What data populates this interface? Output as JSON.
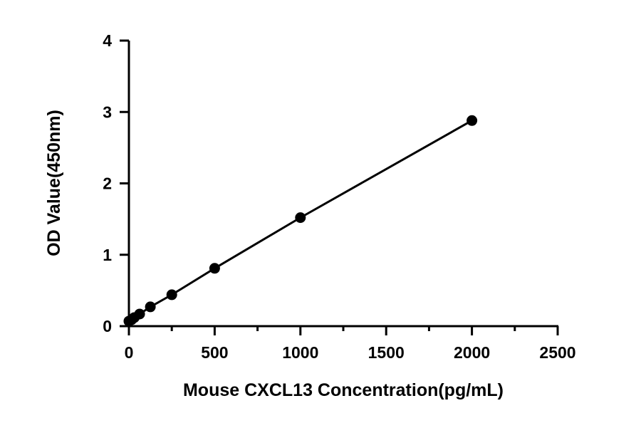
{
  "chart_data": {
    "type": "scatter",
    "title": "",
    "xlabel": "Mouse CXCL13 Concentration(pg/mL)",
    "ylabel": "OD Value(450nm)",
    "xlim": [
      0,
      2500
    ],
    "ylim": [
      0,
      4
    ],
    "x_ticks": [
      0,
      500,
      1000,
      1500,
      2000,
      2500
    ],
    "y_ticks": [
      0,
      1,
      2,
      3,
      4
    ],
    "x_tick_labels": [
      "0",
      "500",
      "1000",
      "1500",
      "2000",
      "2500"
    ],
    "y_tick_labels": [
      "0",
      "1",
      "2",
      "3",
      "4"
    ],
    "x_minor_ticks": [
      250,
      750,
      1250,
      1750,
      2250
    ],
    "grid": false,
    "legend": "none",
    "fit_line": true,
    "series": [
      {
        "x": [
          0,
          15.6,
          31.25,
          62.5,
          125,
          250,
          500,
          1000,
          2000
        ],
        "y": [
          0.07,
          0.09,
          0.12,
          0.17,
          0.27,
          0.44,
          0.81,
          1.52,
          2.88
        ]
      }
    ]
  }
}
